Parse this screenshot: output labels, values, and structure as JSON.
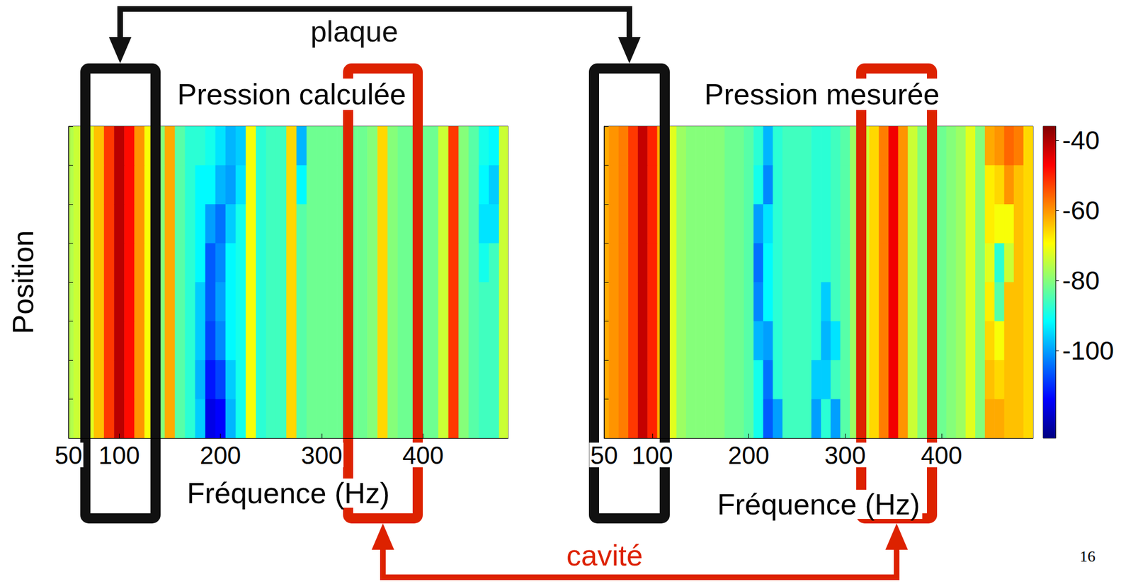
{
  "chart_data": [
    {
      "type": "heatmap",
      "title": "Pression calculée",
      "x_label": "Fréquence (Hz)",
      "y_label": "Position",
      "x": [
        50,
        60,
        70,
        80,
        90,
        100,
        110,
        120,
        130,
        140,
        150,
        160,
        170,
        180,
        190,
        200,
        210,
        220,
        230,
        240,
        250,
        260,
        270,
        280,
        290,
        300,
        310,
        320,
        330,
        340,
        350,
        360,
        370,
        380,
        390,
        400,
        410,
        420,
        430,
        440,
        450,
        460,
        470,
        480
      ],
      "y": [
        null,
        null,
        null,
        null,
        null,
        null,
        null,
        null
      ],
      "values": [
        [
          -76,
          -74,
          -72,
          -64,
          -52,
          -41,
          -48,
          -60,
          -70,
          -80,
          -62,
          -84,
          -88,
          -88,
          -90,
          -94,
          -98,
          -96,
          -70,
          -88,
          -86,
          -86,
          -66,
          -98,
          -82,
          -82,
          -82,
          -82,
          -82,
          -82,
          -80,
          -66,
          -80,
          -82,
          -82,
          -82,
          -82,
          -74,
          -52,
          -80,
          -84,
          -90,
          -92,
          -74
        ],
        [
          -76,
          -74,
          -72,
          -64,
          -52,
          -41,
          -48,
          -60,
          -70,
          -80,
          -62,
          -84,
          -88,
          -92,
          -92,
          -98,
          -100,
          -94,
          -70,
          -88,
          -86,
          -86,
          -66,
          -92,
          -82,
          -82,
          -82,
          -82,
          -82,
          -82,
          -80,
          -66,
          -80,
          -82,
          -82,
          -82,
          -82,
          -74,
          -52,
          -80,
          -84,
          -92,
          -96,
          -74
        ],
        [
          -76,
          -74,
          -72,
          -64,
          -52,
          -41,
          -48,
          -60,
          -70,
          -80,
          -62,
          -84,
          -88,
          -92,
          -100,
          -104,
          -96,
          -90,
          -70,
          -88,
          -86,
          -86,
          -66,
          -84,
          -82,
          -82,
          -82,
          -82,
          -82,
          -82,
          -80,
          -66,
          -80,
          -82,
          -82,
          -82,
          -82,
          -74,
          -52,
          -80,
          -84,
          -94,
          -94,
          -74
        ],
        [
          -76,
          -74,
          -72,
          -64,
          -52,
          -41,
          -48,
          -60,
          -70,
          -80,
          -62,
          -84,
          -88,
          -92,
          -106,
          -102,
          -92,
          -90,
          -70,
          -88,
          -86,
          -86,
          -66,
          -84,
          -82,
          -82,
          -82,
          -82,
          -82,
          -82,
          -80,
          -66,
          -80,
          -82,
          -82,
          -82,
          -82,
          -74,
          -52,
          -80,
          -84,
          -90,
          -86,
          -74
        ],
        [
          -76,
          -74,
          -72,
          -64,
          -52,
          -41,
          -48,
          -60,
          -70,
          -80,
          -62,
          -84,
          -88,
          -96,
          -106,
          -100,
          -92,
          -90,
          -70,
          -88,
          -86,
          -86,
          -66,
          -84,
          -82,
          -82,
          -82,
          -82,
          -82,
          -82,
          -80,
          -66,
          -80,
          -82,
          -82,
          -82,
          -82,
          -74,
          -52,
          -80,
          -84,
          -86,
          -86,
          -74
        ],
        [
          -76,
          -74,
          -72,
          -64,
          -52,
          -41,
          -48,
          -60,
          -70,
          -80,
          -62,
          -84,
          -88,
          -96,
          -108,
          -102,
          -92,
          -90,
          -70,
          -88,
          -86,
          -86,
          -66,
          -84,
          -82,
          -82,
          -82,
          -82,
          -82,
          -82,
          -80,
          -66,
          -80,
          -82,
          -82,
          -82,
          -82,
          -74,
          -52,
          -80,
          -84,
          -86,
          -86,
          -74
        ],
        [
          -76,
          -74,
          -72,
          -64,
          -52,
          -41,
          -48,
          -60,
          -70,
          -80,
          -62,
          -84,
          -88,
          -98,
          -112,
          -108,
          -96,
          -90,
          -70,
          -88,
          -86,
          -86,
          -66,
          -84,
          -82,
          -82,
          -82,
          -82,
          -82,
          -82,
          -80,
          -66,
          -80,
          -82,
          -82,
          -82,
          -82,
          -74,
          -52,
          -80,
          -84,
          -86,
          -86,
          -74
        ],
        [
          -76,
          -74,
          -72,
          -64,
          -52,
          -41,
          -48,
          -60,
          -70,
          -80,
          -62,
          -84,
          -88,
          -96,
          -116,
          -114,
          -98,
          -90,
          -70,
          -88,
          -86,
          -86,
          -66,
          -84,
          -82,
          -82,
          -82,
          -82,
          -82,
          -82,
          -80,
          -66,
          -80,
          -82,
          -82,
          -82,
          -82,
          -74,
          -52,
          -80,
          -84,
          -86,
          -86,
          -74
        ]
      ],
      "xlim": [
        50,
        484
      ],
      "xticks": [
        50,
        100,
        200,
        300,
        400
      ],
      "tick_labels": "x",
      "color_range": [
        -125,
        -36
      ]
    },
    {
      "type": "heatmap",
      "title": "Pression mesurée",
      "x_label": "Fréquence (Hz)",
      "x": [
        50,
        60,
        70,
        80,
        90,
        100,
        110,
        120,
        130,
        140,
        150,
        160,
        170,
        180,
        190,
        200,
        210,
        220,
        230,
        240,
        250,
        260,
        270,
        280,
        290,
        300,
        310,
        320,
        330,
        340,
        350,
        360,
        370,
        380,
        390,
        400,
        410,
        420,
        430,
        440,
        450,
        460,
        470,
        480,
        490
      ],
      "y": [
        null,
        null,
        null,
        null,
        null,
        null,
        null,
        null
      ],
      "values": [
        [
          -62,
          -60,
          -58,
          -52,
          -42,
          -50,
          -62,
          -72,
          -78,
          -80,
          -80,
          -80,
          -80,
          -82,
          -82,
          -84,
          -88,
          -98,
          -88,
          -86,
          -86,
          -86,
          -88,
          -88,
          -86,
          -84,
          -78,
          -74,
          -66,
          -58,
          -46,
          -60,
          -74,
          -80,
          -82,
          -82,
          -80,
          -78,
          -72,
          -80,
          -62,
          -60,
          -56,
          -58,
          -66
        ],
        [
          -62,
          -60,
          -58,
          -52,
          -42,
          -50,
          -62,
          -72,
          -78,
          -80,
          -80,
          -80,
          -80,
          -82,
          -82,
          -84,
          -90,
          -102,
          -88,
          -86,
          -86,
          -86,
          -88,
          -88,
          -86,
          -84,
          -78,
          -74,
          -66,
          -58,
          -46,
          -60,
          -74,
          -80,
          -82,
          -82,
          -80,
          -78,
          -72,
          -80,
          -68,
          -66,
          -60,
          -64,
          -66
        ],
        [
          -62,
          -60,
          -58,
          -52,
          -42,
          -50,
          -62,
          -72,
          -78,
          -80,
          -80,
          -80,
          -80,
          -82,
          -82,
          -84,
          -100,
          -94,
          -88,
          -86,
          -86,
          -86,
          -88,
          -88,
          -86,
          -84,
          -78,
          -74,
          -66,
          -58,
          -46,
          -60,
          -74,
          -80,
          -82,
          -82,
          -80,
          -78,
          -72,
          -80,
          -68,
          -70,
          -70,
          -64,
          -66
        ],
        [
          -62,
          -60,
          -58,
          -52,
          -42,
          -50,
          -62,
          -72,
          -78,
          -80,
          -80,
          -80,
          -80,
          -82,
          -82,
          -84,
          -104,
          -92,
          -88,
          -86,
          -86,
          -86,
          -88,
          -88,
          -86,
          -84,
          -78,
          -74,
          -66,
          -58,
          -46,
          -60,
          -74,
          -80,
          -82,
          -82,
          -80,
          -78,
          -72,
          -80,
          -72,
          -88,
          -74,
          -64,
          -66
        ],
        [
          -62,
          -60,
          -58,
          -52,
          -42,
          -50,
          -62,
          -72,
          -78,
          -80,
          -80,
          -80,
          -80,
          -82,
          -82,
          -84,
          -102,
          -92,
          -88,
          -86,
          -86,
          -86,
          -88,
          -96,
          -86,
          -84,
          -78,
          -74,
          -66,
          -58,
          -46,
          -60,
          -74,
          -80,
          -82,
          -82,
          -80,
          -78,
          -72,
          -80,
          -68,
          -84,
          -64,
          -64,
          -66
        ],
        [
          -62,
          -60,
          -58,
          -52,
          -42,
          -50,
          -62,
          -72,
          -78,
          -80,
          -80,
          -80,
          -80,
          -82,
          -82,
          -84,
          -98,
          -100,
          -88,
          -86,
          -86,
          -86,
          -88,
          -98,
          -94,
          -84,
          -78,
          -74,
          -66,
          -58,
          -46,
          -60,
          -74,
          -80,
          -82,
          -82,
          -80,
          -78,
          -72,
          -80,
          -66,
          -70,
          -64,
          -64,
          -66
        ],
        [
          -62,
          -60,
          -58,
          -52,
          -42,
          -50,
          -62,
          -72,
          -78,
          -80,
          -80,
          -80,
          -80,
          -82,
          -82,
          -84,
          -90,
          -104,
          -88,
          -86,
          -86,
          -86,
          -96,
          -96,
          -86,
          -84,
          -78,
          -74,
          -66,
          -58,
          -46,
          -60,
          -74,
          -80,
          -82,
          -82,
          -80,
          -78,
          -72,
          -80,
          -64,
          -66,
          -64,
          -64,
          -66
        ],
        [
          -62,
          -60,
          -58,
          -52,
          -42,
          -50,
          -62,
          -72,
          -78,
          -80,
          -80,
          -80,
          -80,
          -82,
          -82,
          -84,
          -90,
          -106,
          -100,
          -86,
          -86,
          -86,
          -100,
          -88,
          -100,
          -84,
          -78,
          -74,
          -66,
          -58,
          -46,
          -60,
          -74,
          -80,
          -82,
          -82,
          -80,
          -78,
          -72,
          -80,
          -62,
          -62,
          -64,
          -64,
          -66
        ]
      ],
      "xlim": [
        50,
        495
      ],
      "xticks": [
        50,
        100,
        200,
        300,
        400
      ],
      "tick_labels": "x",
      "color_range": [
        -125,
        -36
      ],
      "colorbar_ticks": [
        -40,
        -60,
        -80,
        -100
      ]
    }
  ],
  "annotations": [
    {
      "text": "plaque",
      "color": "#111111"
    },
    {
      "text": "cavité",
      "color": "#dd2200"
    }
  ],
  "page_number": "16"
}
